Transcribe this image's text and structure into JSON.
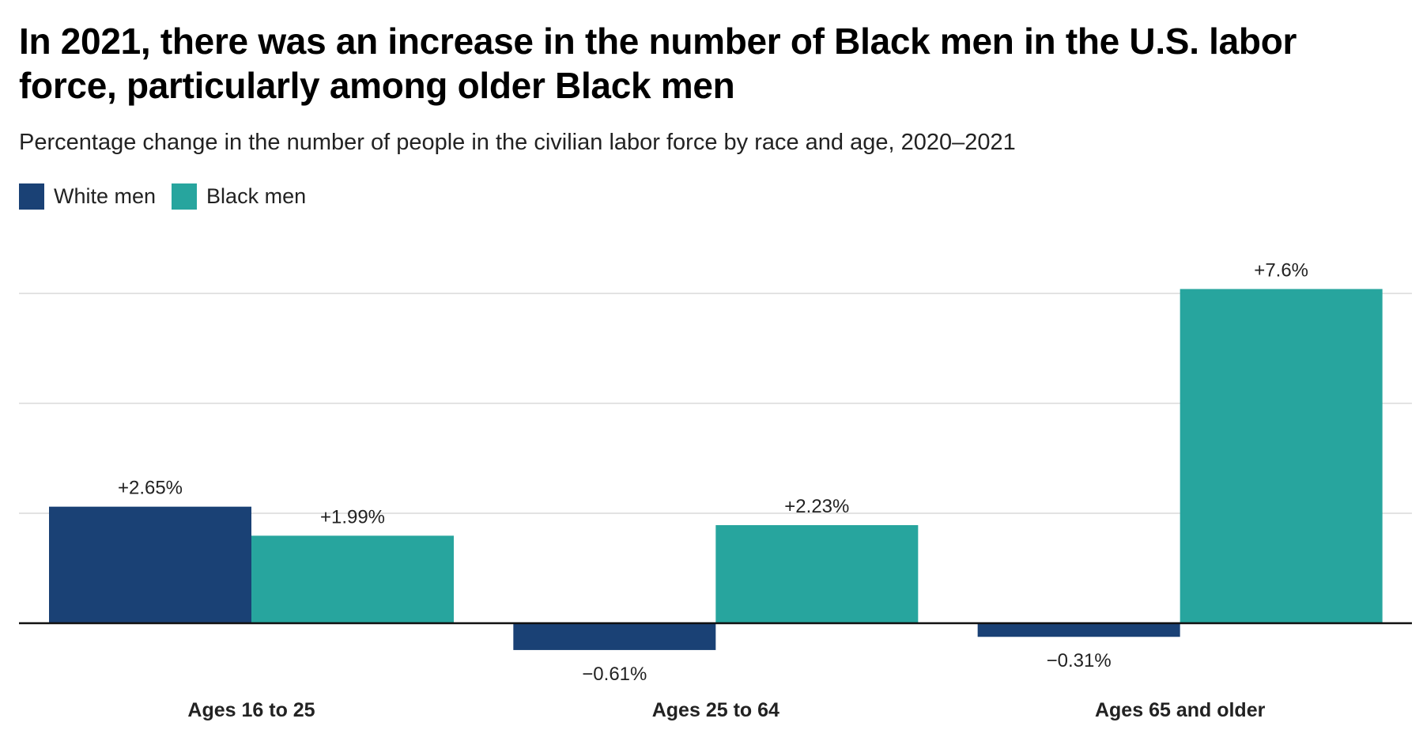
{
  "chart_data": {
    "type": "bar",
    "title": "In 2021, there was an increase in the number of Black men in the U.S. labor force, particularly among older Black men",
    "subtitle": "Percentage change in the number of people in the civilian labor force by race and age, 2020–2021",
    "categories": [
      "Ages 16 to 25",
      "Ages 25 to 64",
      "Ages 65 and older"
    ],
    "series": [
      {
        "name": "White men",
        "color": "#1a4175",
        "values": [
          2.65,
          -0.61,
          -0.31
        ],
        "labels": [
          "+2.65%",
          "−0.61%",
          "−0.31%"
        ]
      },
      {
        "name": "Black men",
        "color": "#27a59e",
        "values": [
          1.99,
          2.23,
          7.6
        ],
        "labels": [
          "+1.99%",
          "+2.23%",
          "+7.6%"
        ]
      }
    ],
    "xlabel": "",
    "ylabel": "",
    "ylim": [
      -1,
      8
    ],
    "gridlines": [
      0,
      2.5,
      5,
      7.5
    ],
    "grid": true,
    "legend": "top-left"
  }
}
